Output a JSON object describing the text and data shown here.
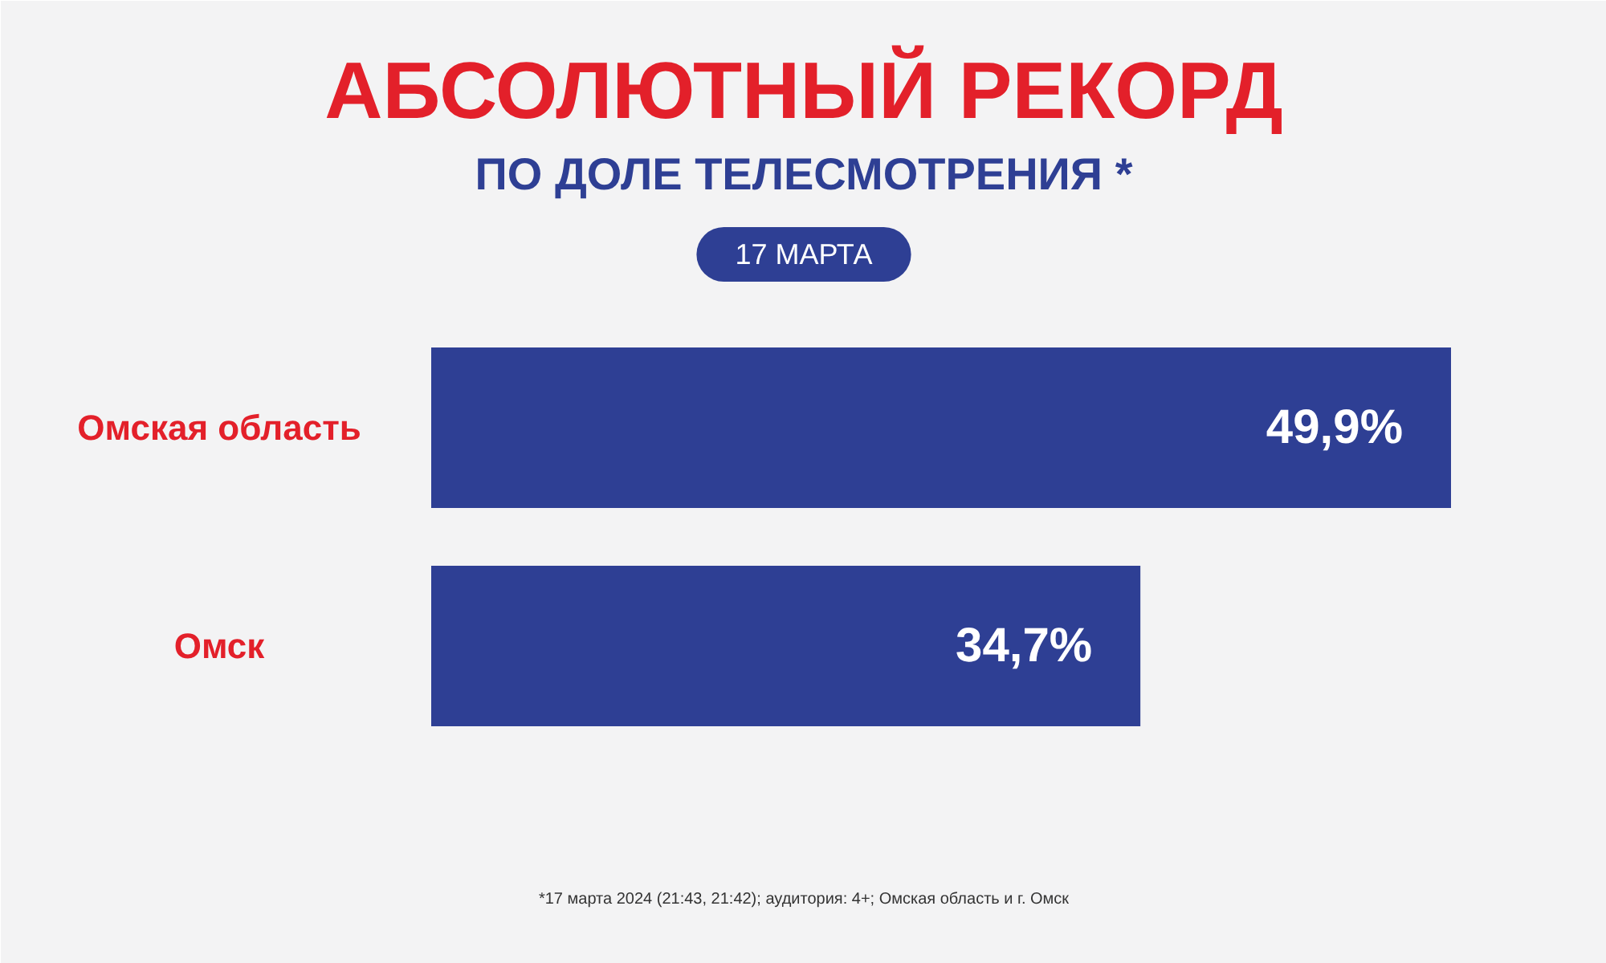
{
  "chart_data": {
    "type": "bar",
    "orientation": "horizontal",
    "title": "АБСОЛЮТНЫЙ РЕКОРД",
    "subtitle": "ПО ДОЛЕ ТЕЛЕСМОТРЕНИЯ *",
    "categories": [
      "Омская область",
      "Омск"
    ],
    "values": [
      49.9,
      34.7
    ],
    "value_labels": [
      "49,9%",
      "34,7%"
    ],
    "color": "#2e3f94",
    "annotations": [
      "17 МАРТА",
      "*17 марта 2024 (21:43, 21:42); аудитория: 4+; Омская область и г. Омск"
    ]
  }
}
